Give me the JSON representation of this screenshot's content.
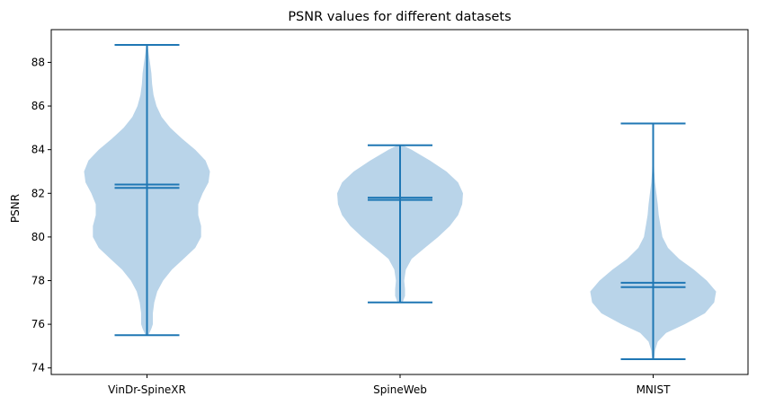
{
  "chart_data": {
    "type": "violin",
    "title": "PSNR values for different datasets",
    "xlabel": "",
    "ylabel": "PSNR",
    "ylim": [
      73.7,
      89.5
    ],
    "yticks": [
      74,
      76,
      78,
      80,
      82,
      84,
      86,
      88
    ],
    "grid": false,
    "categories": [
      "VinDr-SpineXR",
      "SpineWeb",
      "MNIST"
    ],
    "series": [
      {
        "category": "VinDr-SpineXR",
        "min": 75.5,
        "max": 88.8,
        "mean": 82.4,
        "median": 82.25,
        "density_y": [
          75.5,
          75.8,
          76.0,
          76.5,
          77.0,
          77.5,
          78.0,
          78.5,
          79.0,
          79.5,
          80.0,
          80.5,
          81.0,
          81.5,
          82.0,
          82.5,
          83.0,
          83.5,
          84.0,
          84.5,
          85.0,
          85.5,
          86.0,
          86.5,
          87.0,
          87.5,
          88.0,
          88.5,
          88.8
        ],
        "density_w": [
          0.02,
          0.06,
          0.08,
          0.08,
          0.1,
          0.14,
          0.22,
          0.34,
          0.5,
          0.66,
          0.74,
          0.74,
          0.7,
          0.7,
          0.76,
          0.84,
          0.86,
          0.8,
          0.66,
          0.48,
          0.32,
          0.2,
          0.13,
          0.09,
          0.07,
          0.06,
          0.04,
          0.02,
          0.01
        ]
      },
      {
        "category": "SpineWeb",
        "min": 77.0,
        "max": 84.2,
        "mean": 81.8,
        "median": 81.7,
        "density_y": [
          77.0,
          77.3,
          77.6,
          78.0,
          78.5,
          79.0,
          79.5,
          80.0,
          80.5,
          81.0,
          81.5,
          82.0,
          82.5,
          83.0,
          83.5,
          84.0,
          84.2
        ],
        "density_w": [
          0.03,
          0.06,
          0.06,
          0.05,
          0.07,
          0.14,
          0.3,
          0.46,
          0.6,
          0.7,
          0.75,
          0.76,
          0.7,
          0.56,
          0.36,
          0.14,
          0.03
        ]
      },
      {
        "category": "MNIST",
        "min": 74.4,
        "max": 85.2,
        "mean": 77.9,
        "median": 77.7,
        "density_y": [
          74.4,
          74.8,
          75.2,
          75.6,
          76.0,
          76.5,
          77.0,
          77.5,
          78.0,
          78.5,
          79.0,
          79.5,
          80.0,
          80.5,
          81.0,
          81.5,
          82.0,
          82.5,
          83.0,
          83.5,
          84.0,
          84.5,
          85.2
        ],
        "density_w": [
          0.01,
          0.02,
          0.05,
          0.14,
          0.34,
          0.56,
          0.66,
          0.68,
          0.58,
          0.44,
          0.28,
          0.16,
          0.1,
          0.08,
          0.06,
          0.05,
          0.035,
          0.02,
          0.012,
          0.008,
          0.005,
          0.003,
          0.001
        ]
      }
    ],
    "colors": {
      "body_fill": "#b9d4e9",
      "line": "#1f77b4",
      "frame": "#000000"
    }
  }
}
